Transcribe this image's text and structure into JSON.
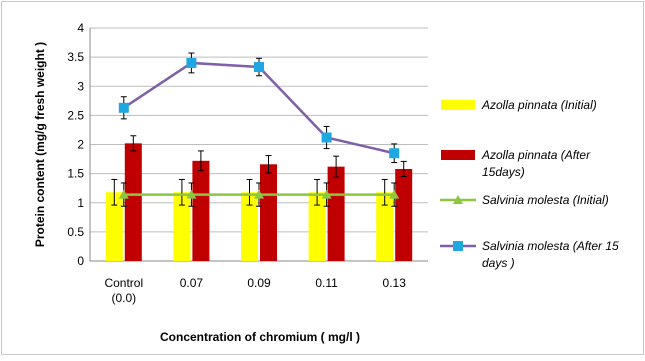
{
  "chart_data": {
    "type": "bar",
    "ylabel": "Protein content (mg/g fresh weight )",
    "xlabel": "Concentration of chromium ( mg/l )",
    "categories": [
      [
        "Control",
        "(0.0)"
      ],
      [
        "0.07"
      ],
      [
        "0.09"
      ],
      [
        "0.11"
      ],
      [
        "0.13"
      ]
    ],
    "ylim": [
      0,
      4
    ],
    "yticks": [
      0,
      0.5,
      1,
      1.5,
      2,
      2.5,
      3,
      3.5,
      4
    ],
    "ytick_labels": [
      "0",
      "0.5",
      "1",
      "1.5",
      "2",
      "2.5",
      "3",
      "3.5",
      "4"
    ],
    "grid": true,
    "legend_position": "right",
    "series": [
      {
        "name": "Azolla pinnata (Initial)",
        "legend_lines": [
          "Azolla pinnata (Initial)"
        ],
        "kind": "bar",
        "color": "#ffff00",
        "values": [
          1.18,
          1.18,
          1.18,
          1.18,
          1.18
        ],
        "errors": [
          0.22,
          0.22,
          0.22,
          0.22,
          0.22
        ]
      },
      {
        "name": "Azolla pinnata (After 15days)",
        "legend_lines": [
          "Azolla pinnata (After",
          "15days)"
        ],
        "kind": "bar",
        "color": "#c00000",
        "values": [
          2.02,
          1.72,
          1.66,
          1.62,
          1.58
        ],
        "errors": [
          0.13,
          0.17,
          0.15,
          0.18,
          0.13
        ]
      },
      {
        "name": "Salvinia molesta (Initial)",
        "legend_lines": [
          "Salvinia molesta (Initial)"
        ],
        "kind": "line",
        "marker": "triangle",
        "color": "#8dc63f",
        "values": [
          1.14,
          1.14,
          1.14,
          1.14,
          1.14
        ],
        "errors": [
          0.2,
          0.2,
          0.2,
          0.2,
          0.2
        ]
      },
      {
        "name": "Salvinia molesta (After 15 days )",
        "legend_lines": [
          "Salvinia molesta (After 15",
          "days  )"
        ],
        "kind": "line",
        "marker": "square",
        "color": "#7f5fa8",
        "marker_color": "#1ea7e1",
        "values": [
          2.63,
          3.4,
          3.33,
          2.12,
          1.85
        ],
        "errors": [
          0.19,
          0.17,
          0.15,
          0.19,
          0.16
        ]
      }
    ]
  }
}
